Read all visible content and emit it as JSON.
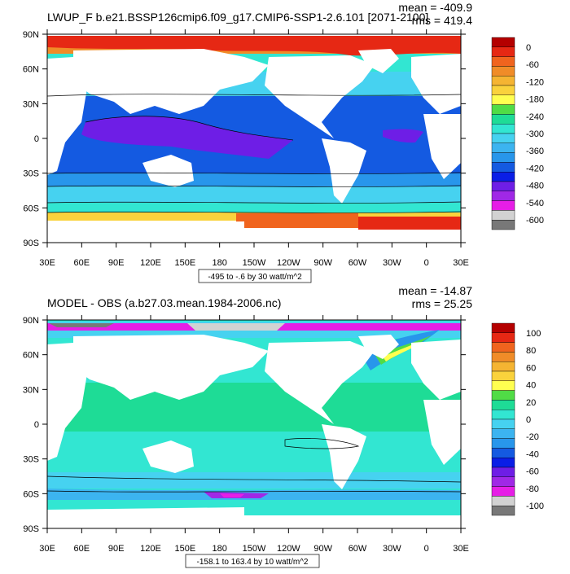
{
  "panels": [
    {
      "title": "LWUP_F b.e21.BSSP126cmip6.f09_g17.CMIP6-SSP1-2.6.101 [2071-2100]",
      "mean": "mean = -409.9",
      "rms": "rms = 419.4",
      "range_note": "-495 to -.6 by 30 watt/m^2",
      "colorbar": {
        "labels": [
          "0",
          "-60",
          "-120",
          "-180",
          "-240",
          "-300",
          "-360",
          "-420",
          "-480",
          "-540",
          "-600"
        ],
        "colors": [
          "#b40000",
          "#e62814",
          "#f0641e",
          "#f08c28",
          "#f5b432",
          "#fad23c",
          "#ffff50",
          "#50dc46",
          "#1edc96",
          "#32e6d2",
          "#46d2f0",
          "#3cb4f0",
          "#2896eb",
          "#145ae1",
          "#0a1ee6",
          "#6e1ee6",
          "#a028e6",
          "#e61ee6",
          "#d2d2d2",
          "#787878"
        ]
      }
    },
    {
      "title": "MODEL - OBS (a.b27.03.mean.1984-2006.nc)",
      "mean": "mean = -14.87",
      "rms": "rms = 25.25",
      "range_note": "-158.1 to 163.4 by 10 watt/m^2",
      "colorbar": {
        "labels": [
          "100",
          "80",
          "60",
          "40",
          "20",
          "0",
          "-20",
          "-40",
          "-60",
          "-80",
          "-100"
        ],
        "colors": [
          "#b40000",
          "#e62814",
          "#f0641e",
          "#f08c28",
          "#f5b432",
          "#fad23c",
          "#ffff50",
          "#50dc46",
          "#1edc96",
          "#32e6d2",
          "#46d2f0",
          "#3cb4f0",
          "#2896eb",
          "#145ae1",
          "#0a1ee6",
          "#6e1ee6",
          "#a028e6",
          "#e61ee6",
          "#d2d2d2",
          "#787878"
        ]
      }
    }
  ],
  "axes": {
    "lat_labels": [
      "90N",
      "60N",
      "30N",
      "0",
      "30S",
      "60S",
      "90S"
    ],
    "lon_labels": [
      "30E",
      "60E",
      "90E",
      "120E",
      "150E",
      "180",
      "150W",
      "120W",
      "90W",
      "60W",
      "30W",
      "0",
      "30E"
    ]
  }
}
